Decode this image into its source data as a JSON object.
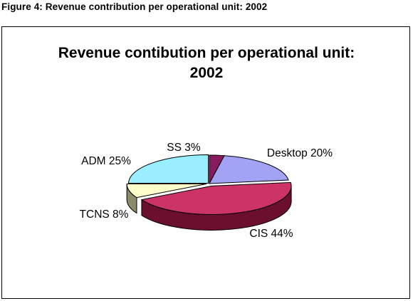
{
  "figure": {
    "caption": "Figure 4:  Revenue contribution per operational unit: 2002"
  },
  "chart_data": {
    "type": "pie",
    "title_line1": "Revenue contibution per operational unit:",
    "title_line2": "2002",
    "legend": "none",
    "three_d": true,
    "slices": [
      {
        "name": "SS",
        "value": 3,
        "label": "SS 3%",
        "color": "#8a1a5e",
        "side_color": "#5a0f3c"
      },
      {
        "name": "Desktop",
        "value": 20,
        "label": "Desktop 20%",
        "color": "#a3a3f5",
        "side_color": "#6e6eb0"
      },
      {
        "name": "CIS",
        "value": 44,
        "label": "CIS 44%",
        "color": "#cc3366",
        "side_color": "#6b0f2e"
      },
      {
        "name": "TCNS",
        "value": 8,
        "label": "TCNS 8%",
        "color": "#ffffcc",
        "side_color": "#8c8a6a"
      },
      {
        "name": "ADM",
        "value": 25,
        "label": "ADM 25%",
        "color": "#99eeff",
        "side_color": "#5fa3b0"
      }
    ]
  }
}
